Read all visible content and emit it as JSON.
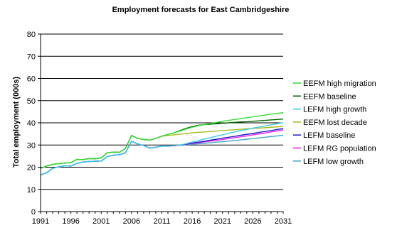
{
  "chart_data": {
    "type": "line",
    "title": "Employment forecasts for East Cambridgeshire",
    "xlabel": "",
    "ylabel": "Total employment (000s)",
    "xlim": [
      1991,
      2031
    ],
    "ylim": [
      0,
      80
    ],
    "x_ticks": [
      "1991",
      "1996",
      "2001",
      "2006",
      "2011",
      "2016",
      "2021",
      "2026",
      "2031"
    ],
    "y_ticks": [
      "0",
      "10",
      "20",
      "30",
      "40",
      "50",
      "60",
      "70",
      "80"
    ],
    "grid": "horizontal",
    "legend_position": "right",
    "series": [
      {
        "name": "EEFM high migration",
        "color": "#33dd33",
        "x": [
          1991,
          1992,
          1993,
          1994,
          1995,
          1996,
          1997,
          1998,
          1999,
          2000,
          2001,
          2002,
          2003,
          2004,
          2005,
          2006,
          2007,
          2008,
          2009,
          2010,
          2011,
          2012,
          2013,
          2014,
          2015,
          2016,
          2017,
          2018,
          2019,
          2020,
          2021,
          2022,
          2023,
          2024,
          2025,
          2026,
          2027,
          2028,
          2029,
          2030,
          2031
        ],
        "y": [
          19.5,
          20.5,
          21.3,
          21.6,
          21.9,
          22.1,
          23.5,
          23.4,
          23.9,
          23.8,
          24.2,
          26.5,
          26.8,
          26.7,
          28.5,
          34.3,
          33.0,
          32.5,
          32.2,
          33.0,
          34.0,
          34.8,
          35.5,
          36.3,
          37.2,
          38.0,
          38.7,
          39.2,
          39.7,
          40.2,
          40.7,
          41.1,
          41.5,
          41.9,
          42.3,
          42.7,
          43.1,
          43.5,
          43.9,
          44.2,
          44.6
        ]
      },
      {
        "name": "EEFM baseline",
        "color": "#006600",
        "x": [
          1991,
          1992,
          1993,
          1994,
          1995,
          1996,
          1997,
          1998,
          1999,
          2000,
          2001,
          2002,
          2003,
          2004,
          2005,
          2006,
          2007,
          2008,
          2009,
          2010,
          2011,
          2012,
          2013,
          2014,
          2015,
          2016,
          2017,
          2018,
          2019,
          2020,
          2021,
          2022,
          2023,
          2024,
          2025,
          2026,
          2027,
          2028,
          2029,
          2030,
          2031
        ],
        "y": [
          19.5,
          20.5,
          21.3,
          21.6,
          21.9,
          22.1,
          23.5,
          23.4,
          23.9,
          23.8,
          24.2,
          26.5,
          26.8,
          26.7,
          28.5,
          34.3,
          33.0,
          32.5,
          32.2,
          33.0,
          34.0,
          34.8,
          35.5,
          36.5,
          37.5,
          38.3,
          38.9,
          39.2,
          39.4,
          39.6,
          39.8,
          40.0,
          40.2,
          40.4,
          40.5,
          40.7,
          40.9,
          41.1,
          41.3,
          41.5,
          41.7
        ]
      },
      {
        "name": "LEFM high growth",
        "color": "#33ccee",
        "x": [
          1991,
          1992,
          1993,
          1994,
          1995,
          1996,
          1997,
          1998,
          1999,
          2000,
          2001,
          2002,
          2003,
          2004,
          2005,
          2006,
          2007,
          2008,
          2009,
          2010,
          2011,
          2012,
          2013,
          2014,
          2015,
          2016,
          2017,
          2018,
          2019,
          2020,
          2021,
          2022,
          2023,
          2024,
          2025,
          2026,
          2027,
          2028,
          2029,
          2030,
          2031
        ],
        "y": [
          16.5,
          17.5,
          19.5,
          20.2,
          20.6,
          20.5,
          21.8,
          22.3,
          22.6,
          22.7,
          22.8,
          24.8,
          25.4,
          25.6,
          26.5,
          31.7,
          30.5,
          29.8,
          28.6,
          29.0,
          29.5,
          29.6,
          29.7,
          30.0,
          30.6,
          31.3,
          32.0,
          32.7,
          33.3,
          34.0,
          34.6,
          35.3,
          35.9,
          36.5,
          37.0,
          37.6,
          38.1,
          38.6,
          39.1,
          39.6,
          40.1
        ]
      },
      {
        "name": "EEFM lost decade",
        "color": "#aabb22",
        "x": [
          1991,
          1992,
          1993,
          1994,
          1995,
          1996,
          1997,
          1998,
          1999,
          2000,
          2001,
          2002,
          2003,
          2004,
          2005,
          2006,
          2007,
          2008,
          2009,
          2010,
          2011,
          2012,
          2013,
          2014,
          2015,
          2016,
          2017,
          2018,
          2019,
          2020,
          2021,
          2022,
          2023,
          2024,
          2025,
          2026,
          2027,
          2028,
          2029,
          2030,
          2031
        ],
        "y": [
          19.5,
          20.5,
          21.3,
          21.6,
          21.9,
          22.1,
          23.5,
          23.4,
          23.9,
          23.8,
          24.2,
          26.5,
          26.8,
          26.7,
          28.5,
          34.3,
          33.0,
          32.5,
          32.2,
          33.0,
          34.0,
          34.3,
          34.6,
          34.9,
          35.2,
          35.5,
          35.7,
          35.9,
          36.1,
          36.3,
          36.5,
          36.7,
          36.9,
          37.1,
          37.3,
          37.5,
          37.6,
          37.8,
          38.0,
          38.2,
          38.4
        ]
      },
      {
        "name": "LEFM baseline",
        "color": "#2222cc",
        "x": [
          1991,
          1992,
          1993,
          1994,
          1995,
          1996,
          1997,
          1998,
          1999,
          2000,
          2001,
          2002,
          2003,
          2004,
          2005,
          2006,
          2007,
          2008,
          2009,
          2010,
          2011,
          2012,
          2013,
          2014,
          2015,
          2016,
          2017,
          2018,
          2019,
          2020,
          2021,
          2022,
          2023,
          2024,
          2025,
          2026,
          2027,
          2028,
          2029,
          2030,
          2031
        ],
        "y": [
          16.5,
          17.5,
          19.5,
          20.2,
          20.6,
          20.5,
          21.8,
          22.3,
          22.6,
          22.7,
          22.8,
          24.8,
          25.4,
          25.6,
          26.5,
          31.7,
          30.5,
          29.8,
          28.6,
          29.0,
          29.5,
          29.6,
          29.7,
          30.0,
          30.4,
          30.9,
          31.3,
          31.7,
          32.2,
          32.6,
          33.1,
          33.5,
          33.9,
          34.4,
          34.8,
          35.2,
          35.7,
          36.1,
          36.5,
          37.0,
          37.4
        ]
      },
      {
        "name": "LEFM RG population",
        "color": "#ee22ee",
        "x": [
          1991,
          1992,
          1993,
          1994,
          1995,
          1996,
          1997,
          1998,
          1999,
          2000,
          2001,
          2002,
          2003,
          2004,
          2005,
          2006,
          2007,
          2008,
          2009,
          2010,
          2011,
          2012,
          2013,
          2014,
          2015,
          2016,
          2017,
          2018,
          2019,
          2020,
          2021,
          2022,
          2023,
          2024,
          2025,
          2026,
          2027,
          2028,
          2029,
          2030,
          2031
        ],
        "y": [
          16.5,
          17.5,
          19.5,
          20.2,
          20.6,
          20.5,
          21.8,
          22.3,
          22.6,
          22.7,
          22.8,
          24.8,
          25.4,
          25.6,
          26.5,
          31.7,
          30.5,
          29.8,
          28.6,
          29.0,
          29.5,
          29.6,
          29.7,
          30.0,
          30.3,
          30.7,
          31.0,
          31.4,
          31.8,
          32.1,
          32.5,
          32.9,
          33.3,
          33.7,
          34.1,
          34.6,
          35.0,
          35.4,
          35.9,
          36.3,
          36.8
        ]
      },
      {
        "name": "LEFM low growth",
        "color": "#44aacc",
        "x": [
          1991,
          1992,
          1993,
          1994,
          1995,
          1996,
          1997,
          1998,
          1999,
          2000,
          2001,
          2002,
          2003,
          2004,
          2005,
          2006,
          2007,
          2008,
          2009,
          2010,
          2011,
          2012,
          2013,
          2014,
          2015,
          2016,
          2017,
          2018,
          2019,
          2020,
          2021,
          2022,
          2023,
          2024,
          2025,
          2026,
          2027,
          2028,
          2029,
          2030,
          2031
        ],
        "y": [
          16.5,
          17.5,
          19.5,
          20.2,
          20.6,
          20.5,
          21.8,
          22.3,
          22.6,
          22.7,
          22.8,
          24.8,
          25.4,
          25.6,
          26.5,
          31.7,
          30.5,
          29.8,
          28.6,
          29.0,
          29.5,
          29.6,
          29.7,
          29.9,
          30.1,
          30.4,
          30.6,
          30.8,
          31.0,
          31.3,
          31.5,
          31.8,
          32.0,
          32.3,
          32.6,
          32.9,
          33.2,
          33.5,
          33.8,
          34.1,
          34.4
        ]
      }
    ]
  }
}
